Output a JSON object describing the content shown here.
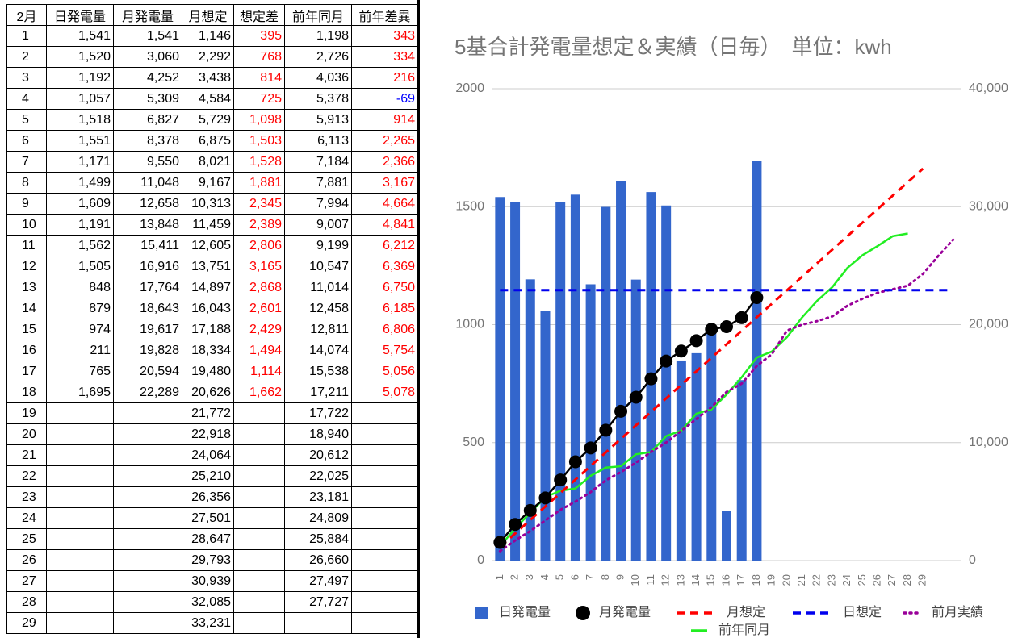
{
  "table": {
    "header": [
      "2月",
      "日発電量",
      "月発電量",
      "月想定",
      "想定差",
      "前年同月",
      "前年差異"
    ],
    "rows": [
      [
        "1",
        "1,541",
        "1,541",
        "1,146",
        "395",
        "1,198",
        "343"
      ],
      [
        "2",
        "1,520",
        "3,060",
        "2,292",
        "768",
        "2,726",
        "334"
      ],
      [
        "3",
        "1,192",
        "4,252",
        "3,438",
        "814",
        "4,036",
        "216"
      ],
      [
        "4",
        "1,057",
        "5,309",
        "4,584",
        "725",
        "5,378",
        "-69"
      ],
      [
        "5",
        "1,518",
        "6,827",
        "5,729",
        "1,098",
        "5,913",
        "914"
      ],
      [
        "6",
        "1,551",
        "8,378",
        "6,875",
        "1,503",
        "6,113",
        "2,265"
      ],
      [
        "7",
        "1,171",
        "9,550",
        "8,021",
        "1,528",
        "7,184",
        "2,366"
      ],
      [
        "8",
        "1,499",
        "11,048",
        "9,167",
        "1,881",
        "7,881",
        "3,167"
      ],
      [
        "9",
        "1,609",
        "12,658",
        "10,313",
        "2,345",
        "7,994",
        "4,664"
      ],
      [
        "10",
        "1,191",
        "13,848",
        "11,459",
        "2,389",
        "9,007",
        "4,841"
      ],
      [
        "11",
        "1,562",
        "15,411",
        "12,605",
        "2,806",
        "9,199",
        "6,212"
      ],
      [
        "12",
        "1,505",
        "16,916",
        "13,751",
        "3,165",
        "10,547",
        "6,369"
      ],
      [
        "13",
        "848",
        "17,764",
        "14,897",
        "2,868",
        "11,014",
        "6,750"
      ],
      [
        "14",
        "879",
        "18,643",
        "16,043",
        "2,601",
        "12,458",
        "6,185"
      ],
      [
        "15",
        "974",
        "19,617",
        "17,188",
        "2,429",
        "12,811",
        "6,806"
      ],
      [
        "16",
        "211",
        "19,828",
        "18,334",
        "1,494",
        "14,074",
        "5,754"
      ],
      [
        "17",
        "765",
        "20,594",
        "19,480",
        "1,114",
        "15,538",
        "5,056"
      ],
      [
        "18",
        "1,695",
        "22,289",
        "20,626",
        "1,662",
        "17,211",
        "5,078"
      ],
      [
        "19",
        null,
        null,
        "21,772",
        null,
        "17,722",
        null
      ],
      [
        "20",
        null,
        null,
        "22,918",
        null,
        "18,940",
        null
      ],
      [
        "21",
        null,
        null,
        "24,064",
        null,
        "20,612",
        null
      ],
      [
        "22",
        null,
        null,
        "25,210",
        null,
        "22,025",
        null
      ],
      [
        "23",
        null,
        null,
        "26,356",
        null,
        "23,181",
        null
      ],
      [
        "24",
        null,
        null,
        "27,501",
        null,
        "24,809",
        null
      ],
      [
        "25",
        null,
        null,
        "28,647",
        null,
        "25,884",
        null
      ],
      [
        "26",
        null,
        null,
        "29,793",
        null,
        "26,660",
        null
      ],
      [
        "27",
        null,
        null,
        "30,939",
        null,
        "27,497",
        null
      ],
      [
        "28",
        null,
        null,
        "32,085",
        null,
        "27,727",
        null
      ],
      [
        "29",
        null,
        null,
        "33,231",
        null,
        null,
        null
      ]
    ]
  },
  "chart_data": {
    "type": "combo",
    "title": "5基合計発電量想定＆実績（日毎）　単位：kwh",
    "categories": [
      "1",
      "2",
      "3",
      "4",
      "5",
      "6",
      "7",
      "8",
      "9",
      "10",
      "11",
      "12",
      "13",
      "14",
      "15",
      "16",
      "17",
      "18",
      "19",
      "20",
      "21",
      "22",
      "23",
      "24",
      "25",
      "26",
      "27",
      "28",
      "29",
      null,
      null
    ],
    "ylim": [
      0,
      2000
    ],
    "yticks": [
      0,
      500,
      1000,
      1500,
      2000
    ],
    "y2lim": [
      0,
      40000
    ],
    "y2ticks": [
      {
        "value": 0,
        "label": "0"
      },
      {
        "value": 10000,
        "label": "10,000"
      },
      {
        "value": 20000,
        "label": "20,000"
      },
      {
        "value": 30000,
        "label": "30,000"
      },
      {
        "value": 40000,
        "label": "40,000"
      }
    ],
    "grid": true,
    "legend": "bottom",
    "series": [
      {
        "name": "日発電量",
        "type": "bar",
        "color": "#3366cc",
        "values": [
          1541,
          1520,
          1192,
          1057,
          1518,
          1551,
          1171,
          1499,
          1609,
          1191,
          1562,
          1505,
          848,
          879,
          974,
          211,
          765,
          1695,
          null,
          null,
          null,
          null,
          null,
          null,
          null,
          null,
          null,
          null,
          null,
          null,
          null
        ]
      },
      {
        "name": "月発電量",
        "type": "line",
        "axis": "y2",
        "color": "#000000",
        "style": "solid",
        "marker": "circle",
        "values": [
          1541,
          3060,
          4252,
          5309,
          6827,
          8378,
          9550,
          11048,
          12658,
          13848,
          15411,
          16916,
          17764,
          18643,
          19617,
          19828,
          20594,
          22289,
          null,
          null,
          null,
          null,
          null,
          null,
          null,
          null,
          null,
          null,
          null,
          null,
          null
        ]
      },
      {
        "name": "月想定",
        "type": "line",
        "axis": "y2",
        "color": "#ff0000",
        "style": "dashed",
        "values": [
          1146,
          2292,
          3438,
          4584,
          5729,
          6875,
          8021,
          9167,
          10313,
          11459,
          12605,
          13751,
          14897,
          16043,
          17188,
          18334,
          19480,
          20626,
          21772,
          22918,
          24064,
          25210,
          26356,
          27501,
          28647,
          29793,
          30939,
          32085,
          33231,
          null,
          null
        ]
      },
      {
        "name": "日想定",
        "type": "line",
        "color": "#0000ee",
        "style": "dashed",
        "values": [
          1146,
          1146,
          1146,
          1146,
          1146,
          1146,
          1146,
          1146,
          1146,
          1146,
          1146,
          1146,
          1146,
          1146,
          1146,
          1146,
          1146,
          1146,
          1146,
          1146,
          1146,
          1146,
          1146,
          1146,
          1146,
          1146,
          1146,
          1146,
          1146,
          1146,
          1146
        ]
      },
      {
        "name": "前月実績",
        "type": "line",
        "axis": "y2",
        "color": "#990099",
        "style": "dotted",
        "values": [
          800,
          1700,
          2500,
          3400,
          4300,
          5000,
          5800,
          6800,
          7500,
          8300,
          9200,
          10000,
          11000,
          12000,
          13000,
          14300,
          15000,
          16500,
          17500,
          19500,
          20000,
          20300,
          20700,
          21600,
          22200,
          22700,
          23000,
          23300,
          24300,
          25800,
          27200
        ]
      },
      {
        "name": "前年同月",
        "type": "line",
        "axis": "y2",
        "color": "#22ee22",
        "style": "solid",
        "values": [
          1198,
          2726,
          4036,
          5378,
          5913,
          6113,
          7184,
          7881,
          7994,
          9007,
          9199,
          10547,
          11014,
          12458,
          12811,
          14074,
          15538,
          17211,
          17722,
          18940,
          20612,
          22025,
          23181,
          24809,
          25884,
          26660,
          27497,
          27727,
          null,
          null,
          null
        ]
      }
    ]
  }
}
